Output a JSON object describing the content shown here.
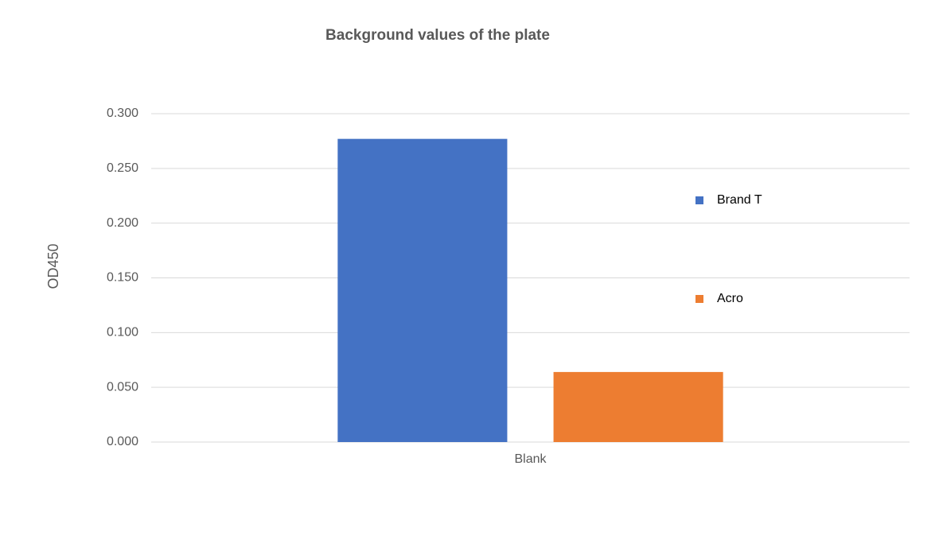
{
  "chart_data": {
    "type": "bar",
    "title": "Background values of the plate",
    "y_label": "OD450",
    "categories": [
      "Blank"
    ],
    "series": [
      {
        "name": "Brand T",
        "color": "#4472c4",
        "values": [
          0.277
        ]
      },
      {
        "name": "Acro",
        "color": "#ed7d31",
        "values": [
          0.064
        ]
      }
    ],
    "ylim": [
      0,
      0.3
    ],
    "yticks": [
      {
        "value": 0,
        "label": "0.000"
      },
      {
        "value": 0.05,
        "label": "0.050"
      },
      {
        "value": 0.1,
        "label": "0.100"
      },
      {
        "value": 0.15,
        "label": "0.150"
      },
      {
        "value": 0.2,
        "label": "0.200"
      },
      {
        "value": 0.25,
        "label": "0.250"
      },
      {
        "value": 0.3,
        "label": "0.300"
      }
    ],
    "grid": true,
    "legend": "right"
  }
}
